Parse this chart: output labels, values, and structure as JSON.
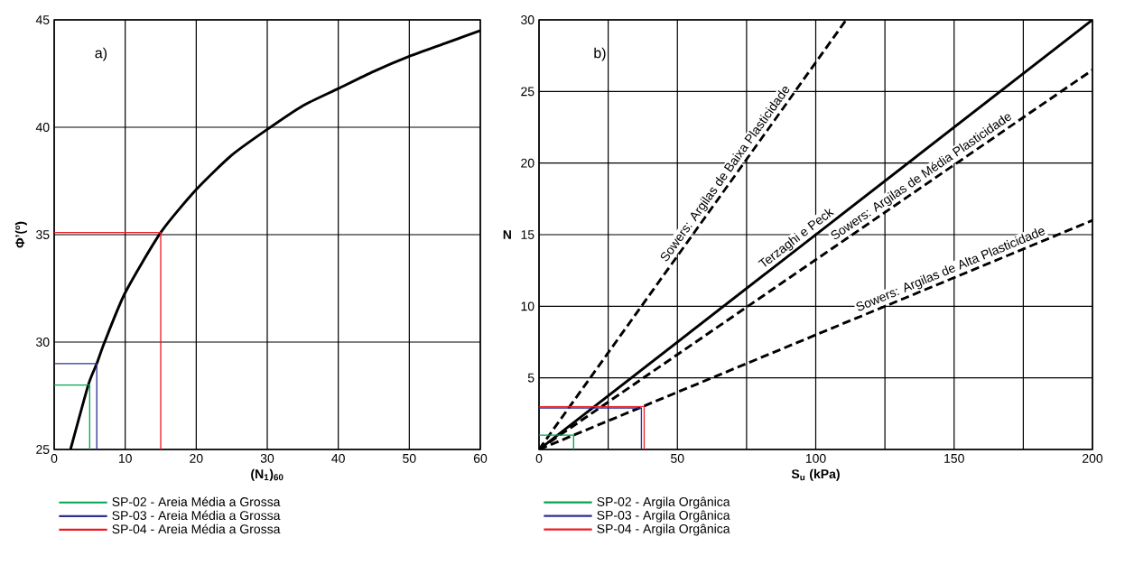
{
  "chart_data": [
    {
      "type": "line",
      "xlabel": "(N$_{1}$)$_{60}$",
      "ylabel": "Φ’(º)",
      "xlim": [
        0,
        60
      ],
      "ylim": [
        25,
        45
      ],
      "xticks": [
        0,
        10,
        20,
        30,
        40,
        50,
        60
      ],
      "yticks": [
        25,
        30,
        35,
        40,
        45
      ],
      "grid": true,
      "legend": "bottom",
      "line_style": "solid",
      "annotations": [
        "a)"
      ],
      "series": [
        {
          "color": "#000000",
          "x": [
            2.3,
            4.8,
            6,
            7.1,
            10,
            15,
            20,
            25,
            30,
            35,
            40,
            45,
            50,
            55,
            60
          ],
          "values": [
            25,
            28,
            29,
            30,
            32.3,
            35.1,
            37.1,
            38.7,
            39.9,
            41,
            41.8,
            42.6,
            43.3,
            43.9,
            44.5
          ]
        },
        {
          "name": "SP-02 - Areia Média a Grossa",
          "color": "#00a651",
          "x": [
            0,
            5,
            5
          ],
          "values": [
            28,
            28,
            25
          ]
        },
        {
          "name": "SP-03 - Areia Média a Grossa",
          "color": "#2e3192",
          "x": [
            0,
            6,
            6
          ],
          "values": [
            29,
            29,
            25
          ]
        },
        {
          "name": "SP-04 - Areia Média a Grossa",
          "color": "#ed1c24",
          "x": [
            0,
            15,
            15
          ],
          "values": [
            35.1,
            35.1,
            25
          ]
        }
      ]
    },
    {
      "type": "line",
      "xlabel": "S$_{u}$ (kPa)",
      "ylabel": "N",
      "xlim": [
        0,
        200
      ],
      "ylim": [
        0,
        30
      ],
      "xticks": [
        0,
        {
          "value": 25,
          "label": null
        },
        50,
        {
          "value": 75,
          "label": null
        },
        100,
        {
          "value": 125,
          "label": null
        },
        150,
        {
          "value": 175,
          "label": null
        },
        200
      ],
      "yticks": [
        {
          "value": 0,
          "label": null
        },
        5,
        10,
        15,
        20,
        25,
        30
      ],
      "grid": true,
      "legend": "bottom",
      "line_style": "solid",
      "annotations": [
        "b)",
        {
          "text": "Sowers: Argilas de Baixa Plasticidade",
          "x": 70,
          "y": 18.9
        },
        {
          "text": "Terzaghi e Peck",
          "x": 95,
          "y": 14.25
        },
        {
          "text": "Sowers: Argilas de Média Plasticidade",
          "x": 140,
          "y": 18.55
        },
        {
          "text": "Sowers: Argilas de Alta Plasticidade",
          "x": 150,
          "y": 12
        }
      ],
      "series": [
        {
          "color": "#000000",
          "line_style": "dashed",
          "x": [
            0,
            111
          ],
          "values": [
            0,
            30
          ]
        },
        {
          "color": "#000000",
          "x": [
            0,
            200
          ],
          "values": [
            0,
            30
          ]
        },
        {
          "color": "#000000",
          "line_style": "dashed",
          "x": [
            0,
            200
          ],
          "values": [
            0,
            26.5
          ]
        },
        {
          "color": "#000000",
          "line_style": "dashed",
          "x": [
            0,
            200
          ],
          "values": [
            0,
            16
          ]
        },
        {
          "name": "SP-02 - Argila Orgânica",
          "color": "#00a651",
          "x": [
            0,
            12.5,
            12.5
          ],
          "values": [
            1,
            1,
            0
          ]
        },
        {
          "name": "SP-03 - Argila Orgânica",
          "color": "#2e3192",
          "x": [
            0,
            37,
            37
          ],
          "values": [
            2.9,
            2.9,
            0
          ]
        },
        {
          "name": "SP-04 - Argila Orgânica",
          "color": "#ed1c24",
          "x": [
            0,
            38,
            38
          ],
          "values": [
            3,
            3,
            0
          ]
        }
      ]
    }
  ]
}
